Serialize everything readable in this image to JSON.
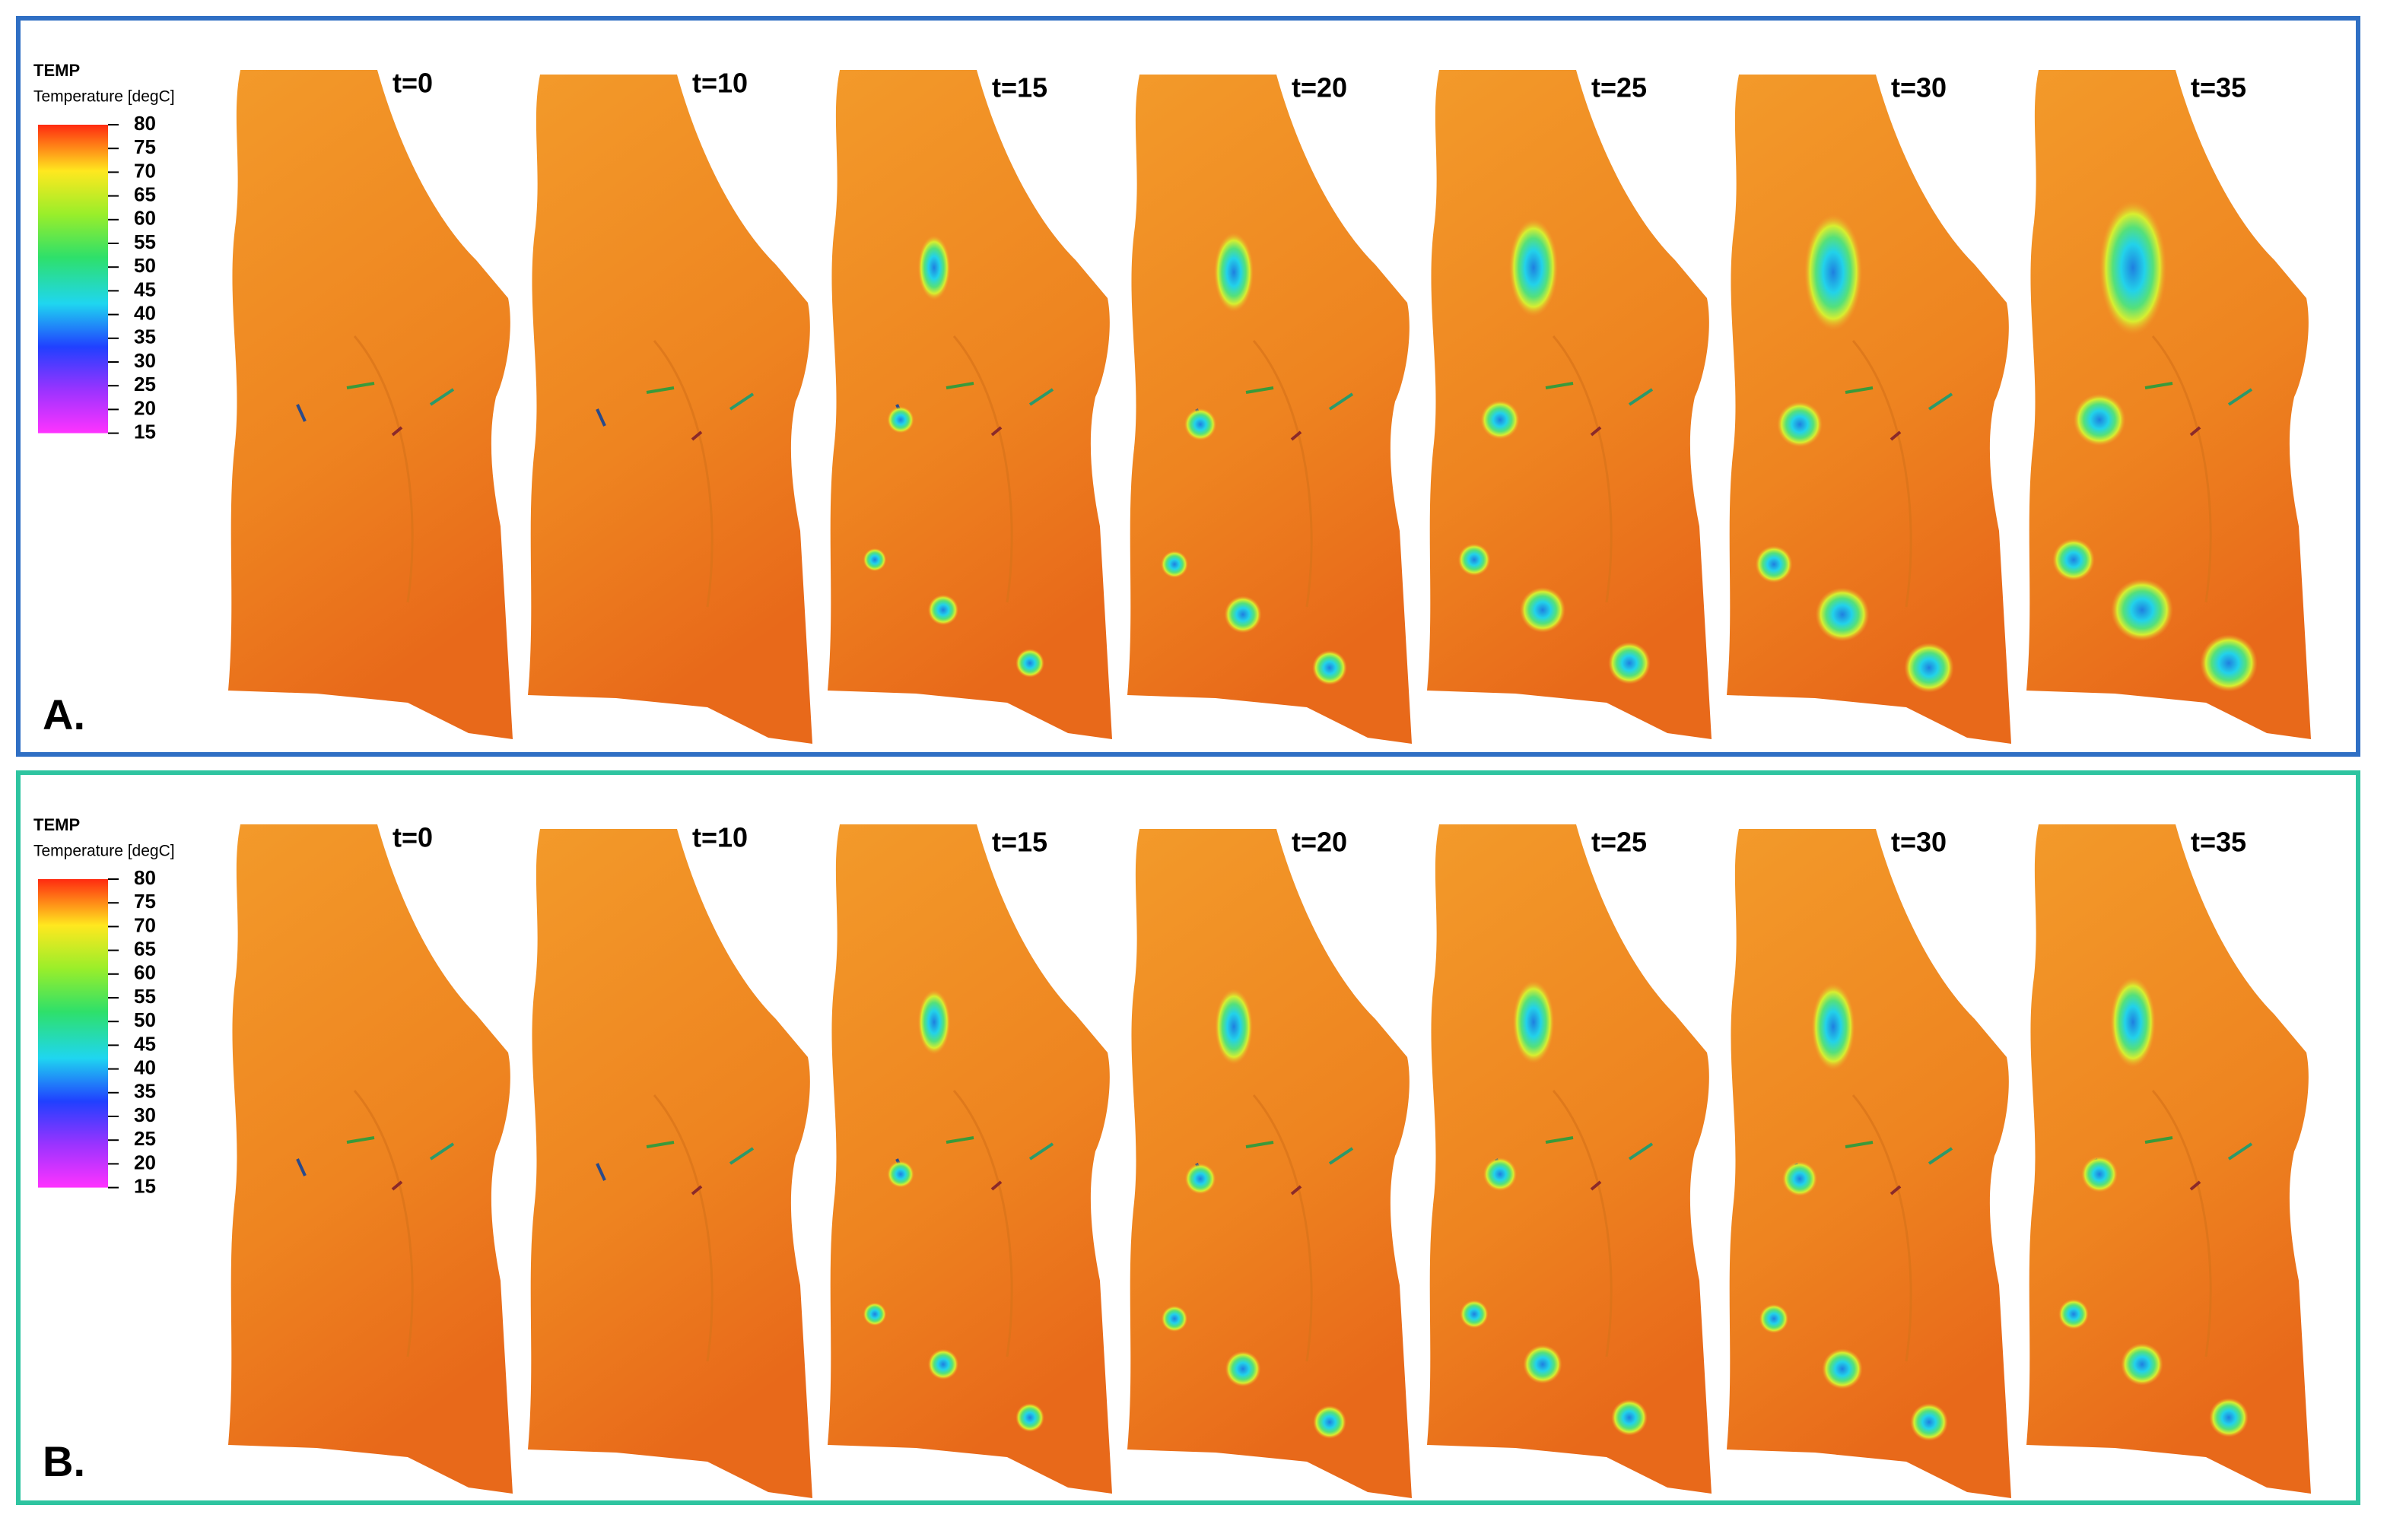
{
  "panels": [
    {
      "label": "A.",
      "legend": {
        "title": "TEMP",
        "subtitle": "Temperature [degC]",
        "ticks": [
          "80",
          "75",
          "70",
          "65",
          "60",
          "55",
          "50",
          "45",
          "40",
          "35",
          "30",
          "25",
          "20",
          "15"
        ]
      },
      "snapshots": [
        "t=0",
        "t=10",
        "t=15",
        "t=20",
        "t=25",
        "t=30",
        "t=35"
      ]
    },
    {
      "label": "B.",
      "legend": {
        "title": "TEMP",
        "subtitle": "Temperature [degC]",
        "ticks": [
          "80",
          "75",
          "70",
          "65",
          "60",
          "55",
          "50",
          "45",
          "40",
          "35",
          "30",
          "25",
          "20",
          "15"
        ]
      },
      "snapshots": [
        "t=0",
        "t=10",
        "t=15",
        "t=20",
        "t=25",
        "t=30",
        "t=35"
      ]
    }
  ]
}
